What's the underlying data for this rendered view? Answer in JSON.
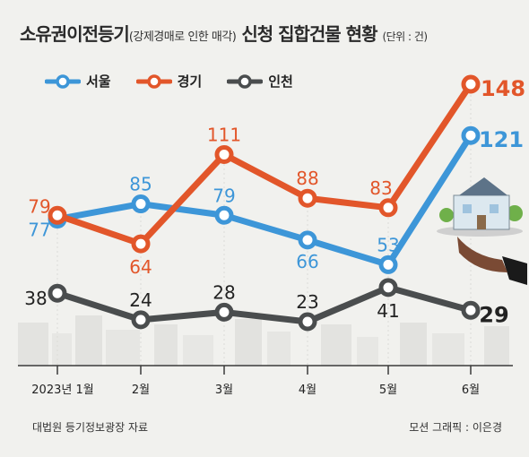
{
  "title": {
    "main": "소유권이전등기",
    "paren": "(강제경매로 인한 매각)",
    "rest": " 신청 집합건물 현황 ",
    "unit": "(단위 : 건)"
  },
  "colors": {
    "seoul": "#3d96d8",
    "gyeonggi": "#e2562a",
    "incheon": "#4a4d4e",
    "background": "#f1f1ee"
  },
  "footer": {
    "source": "대법원 등기정보광장 자료",
    "credit": "모션 그래픽 : 이은경"
  },
  "chart_data": {
    "type": "line",
    "categories": [
      "2023년 1월",
      "2월",
      "3월",
      "4월",
      "5월",
      "6월"
    ],
    "series": [
      {
        "key": "seoul",
        "name": "서울",
        "values": [
          77,
          85,
          79,
          66,
          53,
          121
        ]
      },
      {
        "key": "gyeonggi",
        "name": "경기",
        "values": [
          79,
          64,
          111,
          88,
          83,
          148
        ]
      },
      {
        "key": "incheon",
        "name": "인천",
        "values": [
          38,
          24,
          28,
          23,
          41,
          29
        ]
      }
    ],
    "legend_position": "top-left",
    "grid": false,
    "xlabel": "",
    "ylabel": ""
  }
}
